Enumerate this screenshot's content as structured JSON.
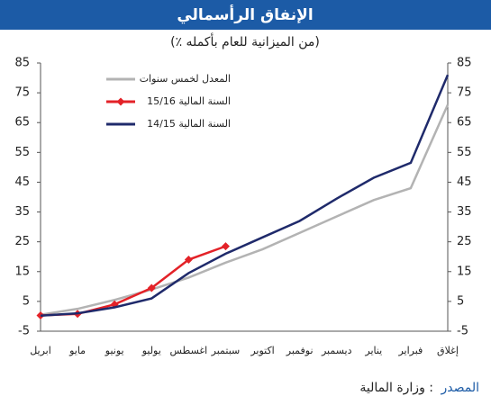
{
  "chart_data": {
    "type": "line",
    "title": "الإنفاق الرأسمالي",
    "subtitle": "(٪ من الميزانية للعام بأكمله)",
    "categories": [
      "ابريل",
      "مايو",
      "يونيو",
      "يوليو",
      "اغسطس",
      "سبتمبر",
      "اكتوبر",
      "نوفمبر",
      "ديسمبر",
      "يناير",
      "فبراير",
      "إغلاق"
    ],
    "series": [
      {
        "name": "المعدل لخمس سنوات",
        "color": "#b3b3b3",
        "markers": false,
        "values": [
          0.5,
          2.5,
          5.5,
          9,
          13,
          18,
          22.5,
          28,
          33.5,
          39,
          43,
          71
        ]
      },
      {
        "name": "السنة المالية 15/16",
        "color": "#e32228",
        "markers": true,
        "values": [
          0.3,
          0.8,
          4,
          9.5,
          19,
          23.5,
          null,
          null,
          null,
          null,
          null,
          null
        ]
      },
      {
        "name": "السنة المالية 14/15",
        "color": "#1f2a6b",
        "markers": false,
        "values": [
          0.2,
          1,
          3,
          6,
          14.5,
          21,
          26.5,
          32,
          39.5,
          46.5,
          51.5,
          81
        ]
      }
    ],
    "ylim": [
      -5,
      85
    ],
    "yticks": [
      -5,
      5,
      15,
      25,
      35,
      45,
      55,
      65,
      75,
      85
    ],
    "y2lim": [
      -5,
      85
    ],
    "y2ticks": [
      -5,
      5,
      15,
      25,
      35,
      45,
      55,
      65,
      75,
      85
    ],
    "grid": false,
    "legend": "top-left",
    "source_label": "المصدر",
    "source_text": ": وزارة المالية"
  }
}
